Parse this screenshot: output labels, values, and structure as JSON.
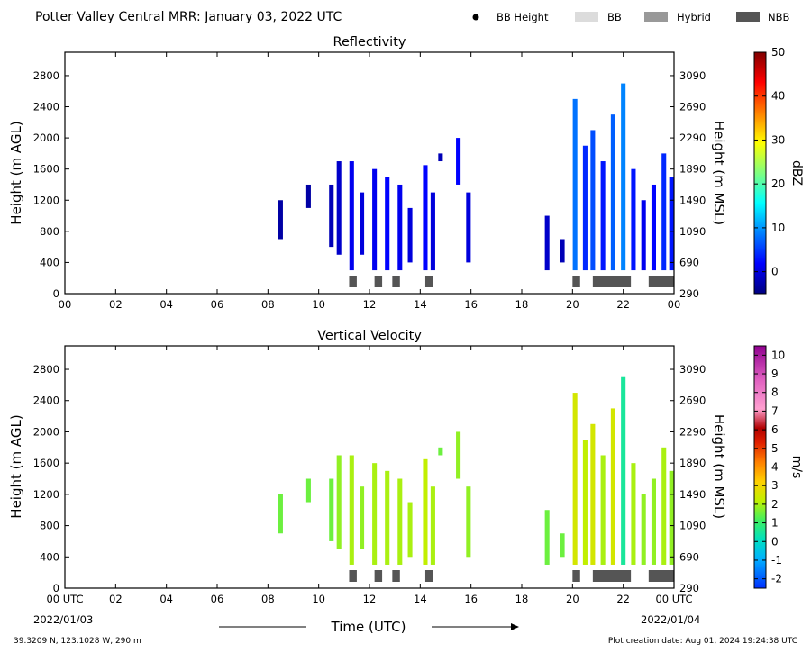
{
  "header": {
    "title": "Potter Valley Central MRR:  January 03, 2022 UTC",
    "legend": [
      {
        "label": "BB Height",
        "kind": "marker",
        "color": "#000000"
      },
      {
        "label": "BB",
        "kind": "patch",
        "color": "#dcdcdc"
      },
      {
        "label": "Hybrid",
        "kind": "patch",
        "color": "#999999"
      },
      {
        "label": "NBB",
        "kind": "patch",
        "color": "#555555"
      }
    ]
  },
  "footer": {
    "xlabel": "Time (UTC)",
    "start_date": "2022/01/03",
    "end_date": "2022/01/04",
    "location": "39.3209 N, 123.1028 W, 290 m",
    "creation": "Plot creation date: Aug 01, 2024 19:24:38 UTC"
  },
  "chart_data": [
    {
      "type": "heatmap",
      "title": "Reflectivity",
      "ylabel": "Height (m AGL)",
      "ylabel_right": "Height (m MSL)",
      "xlim": [
        0,
        24
      ],
      "ylim": [
        0,
        3100
      ],
      "xticks": [
        "00",
        "02",
        "04",
        "06",
        "08",
        "10",
        "12",
        "14",
        "16",
        "18",
        "20",
        "22",
        "00"
      ],
      "yticks": [
        0,
        400,
        800,
        1200,
        1600,
        2000,
        2400,
        2800
      ],
      "yticks_right": [
        290,
        690,
        1090,
        1490,
        1890,
        2290,
        2690,
        3090
      ],
      "colorbar": {
        "label": "dBZ",
        "ticks": [
          0,
          10,
          20,
          30,
          40,
          50
        ],
        "range": [
          -5,
          50
        ],
        "colormap": "jet"
      },
      "columns": [
        {
          "t": 8.5,
          "bottom": 700,
          "top": 1200,
          "value": -3
        },
        {
          "t": 9.6,
          "bottom": 1100,
          "top": 1400,
          "value": -3
        },
        {
          "t": 10.5,
          "bottom": 600,
          "top": 1400,
          "value": -2
        },
        {
          "t": 10.8,
          "bottom": 500,
          "top": 1700,
          "value": -1
        },
        {
          "t": 11.3,
          "bottom": 300,
          "top": 1700,
          "value": 1
        },
        {
          "t": 11.7,
          "bottom": 500,
          "top": 1300,
          "value": 0
        },
        {
          "t": 12.2,
          "bottom": 300,
          "top": 1600,
          "value": 1
        },
        {
          "t": 12.7,
          "bottom": 300,
          "top": 1500,
          "value": 2
        },
        {
          "t": 13.2,
          "bottom": 300,
          "top": 1400,
          "value": 1
        },
        {
          "t": 13.6,
          "bottom": 400,
          "top": 1100,
          "value": 0
        },
        {
          "t": 14.2,
          "bottom": 300,
          "top": 1650,
          "value": 2
        },
        {
          "t": 14.5,
          "bottom": 300,
          "top": 1300,
          "value": 0
        },
        {
          "t": 14.8,
          "bottom": 1700,
          "top": 1800,
          "value": -2
        },
        {
          "t": 15.5,
          "bottom": 1400,
          "top": 2000,
          "value": 2
        },
        {
          "t": 15.9,
          "bottom": 400,
          "top": 1300,
          "value": 0
        },
        {
          "t": 19.0,
          "bottom": 300,
          "top": 1000,
          "value": -1
        },
        {
          "t": 19.6,
          "bottom": 400,
          "top": 700,
          "value": -2
        },
        {
          "t": 20.1,
          "bottom": 300,
          "top": 2500,
          "value": 8
        },
        {
          "t": 20.5,
          "bottom": 300,
          "top": 1900,
          "value": 4
        },
        {
          "t": 20.8,
          "bottom": 300,
          "top": 2100,
          "value": 6
        },
        {
          "t": 21.2,
          "bottom": 300,
          "top": 1700,
          "value": 3
        },
        {
          "t": 21.6,
          "bottom": 300,
          "top": 2300,
          "value": 7
        },
        {
          "t": 22.0,
          "bottom": 300,
          "top": 2700,
          "value": 9
        },
        {
          "t": 22.4,
          "bottom": 300,
          "top": 1600,
          "value": 3
        },
        {
          "t": 22.8,
          "bottom": 300,
          "top": 1200,
          "value": 1
        },
        {
          "t": 23.2,
          "bottom": 300,
          "top": 1400,
          "value": 2
        },
        {
          "t": 23.6,
          "bottom": 300,
          "top": 1800,
          "value": 4
        },
        {
          "t": 23.9,
          "bottom": 300,
          "top": 1500,
          "value": 3
        }
      ],
      "bright_band": [
        {
          "start": 11.2,
          "end": 11.5,
          "type": "NBB"
        },
        {
          "start": 12.2,
          "end": 12.5,
          "type": "NBB"
        },
        {
          "start": 12.9,
          "end": 13.2,
          "type": "NBB"
        },
        {
          "start": 14.2,
          "end": 14.5,
          "type": "NBB"
        },
        {
          "start": 20.0,
          "end": 20.3,
          "type": "NBB"
        },
        {
          "start": 20.8,
          "end": 22.3,
          "type": "NBB"
        },
        {
          "start": 23.0,
          "end": 24.0,
          "type": "NBB"
        }
      ]
    },
    {
      "type": "heatmap",
      "title": "Vertical Velocity",
      "ylabel": "Height (m AGL)",
      "ylabel_right": "Height (m MSL)",
      "xlim": [
        0,
        24
      ],
      "ylim": [
        0,
        3100
      ],
      "xticks": [
        "00 UTC",
        "02",
        "04",
        "06",
        "08",
        "10",
        "12",
        "14",
        "16",
        "18",
        "20",
        "22",
        "00 UTC"
      ],
      "yticks": [
        0,
        400,
        800,
        1200,
        1600,
        2000,
        2400,
        2800
      ],
      "yticks_right": [
        290,
        690,
        1090,
        1490,
        1890,
        2290,
        2690,
        3090
      ],
      "colorbar": {
        "label": "m/s",
        "ticks": [
          -2,
          -1,
          0,
          1,
          2,
          3,
          4,
          5,
          6,
          7,
          8,
          9,
          10
        ],
        "range": [
          -2.5,
          10.5
        ],
        "colormap": "velocity"
      },
      "columns": [
        {
          "t": 8.5,
          "bottom": 700,
          "top": 1200,
          "value": 1.5
        },
        {
          "t": 9.6,
          "bottom": 1100,
          "top": 1400,
          "value": 1.5
        },
        {
          "t": 10.5,
          "bottom": 600,
          "top": 1400,
          "value": 1.5
        },
        {
          "t": 10.8,
          "bottom": 500,
          "top": 1700,
          "value": 1.8
        },
        {
          "t": 11.3,
          "bottom": 300,
          "top": 1700,
          "value": 2
        },
        {
          "t": 11.7,
          "bottom": 500,
          "top": 1300,
          "value": 1.8
        },
        {
          "t": 12.2,
          "bottom": 300,
          "top": 1600,
          "value": 2
        },
        {
          "t": 12.7,
          "bottom": 300,
          "top": 1500,
          "value": 2
        },
        {
          "t": 13.2,
          "bottom": 300,
          "top": 1400,
          "value": 2
        },
        {
          "t": 13.6,
          "bottom": 400,
          "top": 1100,
          "value": 2
        },
        {
          "t": 14.2,
          "bottom": 300,
          "top": 1650,
          "value": 2.2
        },
        {
          "t": 14.5,
          "bottom": 300,
          "top": 1300,
          "value": 2
        },
        {
          "t": 14.8,
          "bottom": 1700,
          "top": 1800,
          "value": 1.5
        },
        {
          "t": 15.5,
          "bottom": 1400,
          "top": 2000,
          "value": 1.8
        },
        {
          "t": 15.9,
          "bottom": 400,
          "top": 1300,
          "value": 1.8
        },
        {
          "t": 19.0,
          "bottom": 300,
          "top": 1000,
          "value": 1.5
        },
        {
          "t": 19.6,
          "bottom": 400,
          "top": 700,
          "value": 1.5
        },
        {
          "t": 20.1,
          "bottom": 300,
          "top": 2500,
          "value": 2.5
        },
        {
          "t": 20.5,
          "bottom": 300,
          "top": 1900,
          "value": 2.2
        },
        {
          "t": 20.8,
          "bottom": 300,
          "top": 2100,
          "value": 2.5
        },
        {
          "t": 21.2,
          "bottom": 300,
          "top": 1700,
          "value": 2
        },
        {
          "t": 21.6,
          "bottom": 300,
          "top": 2300,
          "value": 2.5
        },
        {
          "t": 22.0,
          "bottom": 300,
          "top": 2700,
          "value": 0.5
        },
        {
          "t": 22.4,
          "bottom": 300,
          "top": 1600,
          "value": 2
        },
        {
          "t": 22.8,
          "bottom": 300,
          "top": 1200,
          "value": 1.8
        },
        {
          "t": 23.2,
          "bottom": 300,
          "top": 1400,
          "value": 1.8
        },
        {
          "t": 23.6,
          "bottom": 300,
          "top": 1800,
          "value": 2
        },
        {
          "t": 23.9,
          "bottom": 300,
          "top": 1500,
          "value": 1.8
        }
      ],
      "bright_band": [
        {
          "start": 11.2,
          "end": 11.5,
          "type": "NBB"
        },
        {
          "start": 12.2,
          "end": 12.5,
          "type": "NBB"
        },
        {
          "start": 12.9,
          "end": 13.2,
          "type": "NBB"
        },
        {
          "start": 14.2,
          "end": 14.5,
          "type": "NBB"
        },
        {
          "start": 20.0,
          "end": 20.3,
          "type": "NBB"
        },
        {
          "start": 20.8,
          "end": 22.3,
          "type": "NBB"
        },
        {
          "start": 23.0,
          "end": 24.0,
          "type": "NBB"
        }
      ]
    }
  ]
}
